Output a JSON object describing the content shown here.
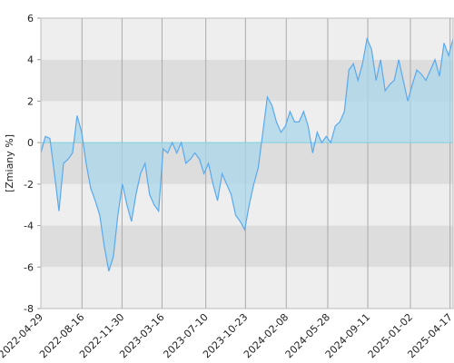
{
  "chart_data": {
    "type": "area",
    "y_label": "[Zmiany %]",
    "x": [
      "2022-04-29",
      "2022-05-11",
      "2022-05-23",
      "2022-06-04",
      "2022-06-16",
      "2022-06-28",
      "2022-07-10",
      "2022-07-22",
      "2022-08-03",
      "2022-08-15",
      "2022-08-27",
      "2022-09-08",
      "2022-09-20",
      "2022-10-02",
      "2022-10-14",
      "2022-10-26",
      "2022-11-07",
      "2022-11-19",
      "2022-12-01",
      "2022-12-13",
      "2022-12-25",
      "2023-01-06",
      "2023-01-18",
      "2023-01-30",
      "2023-02-11",
      "2023-02-23",
      "2023-03-07",
      "2023-03-19",
      "2023-03-31",
      "2023-04-12",
      "2023-04-24",
      "2023-05-06",
      "2023-05-18",
      "2023-05-30",
      "2023-06-11",
      "2023-06-23",
      "2023-07-05",
      "2023-07-17",
      "2023-07-29",
      "2023-08-10",
      "2023-08-22",
      "2023-09-03",
      "2023-09-15",
      "2023-09-27",
      "2023-10-09",
      "2023-10-21",
      "2023-11-02",
      "2023-11-14",
      "2023-11-26",
      "2023-12-08",
      "2023-12-20",
      "2024-01-01",
      "2024-01-13",
      "2024-01-25",
      "2024-02-06",
      "2024-02-18",
      "2024-03-01",
      "2024-03-13",
      "2024-03-25",
      "2024-04-06",
      "2024-04-18",
      "2024-04-30",
      "2024-05-12",
      "2024-05-24",
      "2024-06-05",
      "2024-06-17",
      "2024-06-29",
      "2024-07-11",
      "2024-07-23",
      "2024-08-04",
      "2024-08-16",
      "2024-08-28",
      "2024-09-09",
      "2024-09-21",
      "2024-10-03",
      "2024-10-15",
      "2024-10-27",
      "2024-11-08",
      "2024-11-20",
      "2024-12-02",
      "2024-12-14",
      "2024-12-26",
      "2025-01-07",
      "2025-01-19",
      "2025-01-31",
      "2025-02-12",
      "2025-02-24",
      "2025-03-08",
      "2025-03-20",
      "2025-04-01",
      "2025-04-13",
      "2025-04-25"
    ],
    "series": [
      {
        "color": "#5aa9ef",
        "fill_color": "#a9d6ea",
        "values": [
          -0.5,
          0.3,
          0.2,
          -1.5,
          -3.3,
          -1.0,
          -0.8,
          -0.5,
          1.3,
          0.5,
          -1.0,
          -2.2,
          -2.8,
          -3.5,
          -5.0,
          -6.2,
          -5.5,
          -3.5,
          -2.0,
          -3.0,
          -3.8,
          -2.5,
          -1.5,
          -1.0,
          -2.5,
          -3.0,
          -3.3,
          -0.3,
          -0.5,
          0.0,
          -0.5,
          0.0,
          -1.0,
          -0.8,
          -0.5,
          -0.8,
          -1.5,
          -1.0,
          -2.0,
          -2.8,
          -1.5,
          -2.0,
          -2.5,
          -3.5,
          -3.8,
          -4.2,
          -3.0,
          -2.0,
          -1.2,
          0.5,
          2.2,
          1.8,
          1.0,
          0.5,
          0.8,
          1.5,
          1.0,
          1.0,
          1.5,
          0.8,
          -0.5,
          0.5,
          0.0,
          0.3,
          0.0,
          0.8,
          1.0,
          1.5,
          3.5,
          3.8,
          3.0,
          3.8,
          5.0,
          4.5,
          3.0,
          4.0,
          2.5,
          2.8,
          3.0,
          4.0,
          3.0,
          2.0,
          2.8,
          3.5,
          3.3,
          3.0,
          3.5,
          4.0,
          3.2,
          4.8,
          4.2,
          5.0
        ]
      }
    ],
    "xlim": [
      "2022-04-29",
      "2025-04-25"
    ],
    "xticks": [
      "2022-04-29",
      "2022-08-16",
      "2022-11-30",
      "2023-03-16",
      "2023-07-10",
      "2023-10-23",
      "2024-02-08",
      "2024-05-28",
      "2024-09-11",
      "2025-01-02",
      "2025-04-17"
    ],
    "ylim": [
      -8,
      6
    ],
    "yticks": [
      -8,
      -6,
      -4,
      -2,
      0,
      2,
      4,
      6
    ],
    "bands": [
      "#eeeeee",
      "#dddddd"
    ],
    "grid": true
  }
}
